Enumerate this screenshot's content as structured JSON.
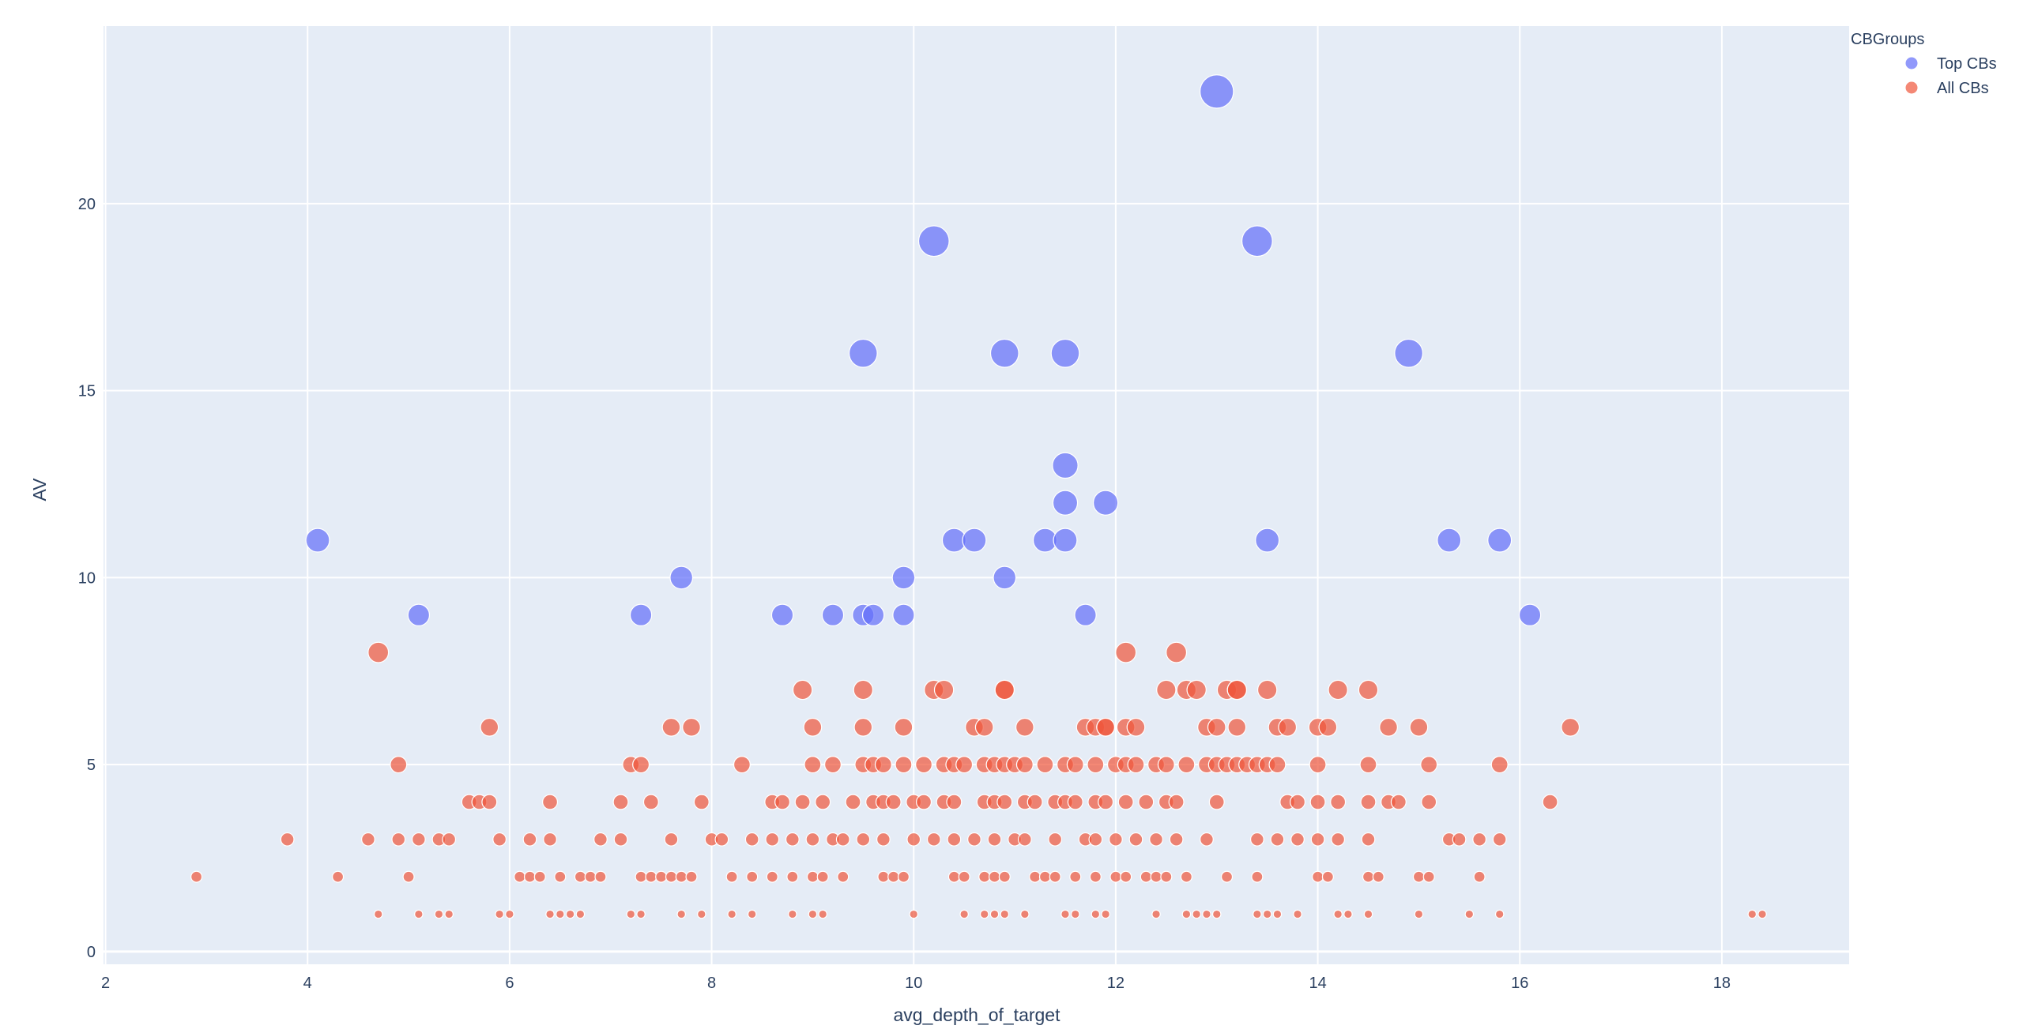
{
  "chart_data": {
    "type": "scatter",
    "title": "",
    "xlabel": "avg_depth_of_target",
    "ylabel": "AV",
    "xlim": [
      1.98,
      19.26
    ],
    "ylim": [
      -0.34,
      24.75
    ],
    "x_ticks": [
      2,
      4,
      6,
      8,
      10,
      12,
      14,
      16,
      18
    ],
    "y_ticks": [
      0,
      5,
      10,
      15,
      20
    ],
    "grid": true,
    "marker_size_encodes": "AV",
    "legend": {
      "title": "CBGroups",
      "placement": "top-right"
    },
    "plot_bgcolor": "#E5ECF6",
    "series": [
      {
        "name": "Top CBs",
        "color": "#636EFA",
        "points": [
          [
            4.1,
            11
          ],
          [
            5.1,
            9
          ],
          [
            7.3,
            9
          ],
          [
            7.7,
            10
          ],
          [
            8.7,
            9
          ],
          [
            9.2,
            9
          ],
          [
            9.5,
            16
          ],
          [
            9.5,
            9
          ],
          [
            9.6,
            9
          ],
          [
            9.9,
            10
          ],
          [
            9.9,
            9
          ],
          [
            10.2,
            19
          ],
          [
            10.4,
            11
          ],
          [
            10.6,
            11
          ],
          [
            10.9,
            16
          ],
          [
            10.9,
            10
          ],
          [
            11.3,
            11
          ],
          [
            11.5,
            16
          ],
          [
            11.5,
            13
          ],
          [
            11.5,
            12
          ],
          [
            11.5,
            11
          ],
          [
            11.7,
            9
          ],
          [
            11.9,
            12
          ],
          [
            13.0,
            23
          ],
          [
            13.4,
            19
          ],
          [
            13.5,
            11
          ],
          [
            14.9,
            16
          ],
          [
            15.3,
            11
          ],
          [
            15.8,
            11
          ],
          [
            16.1,
            9
          ]
        ]
      },
      {
        "name": "All CBs",
        "color": "#EF553B",
        "points": [
          [
            4.7,
            8
          ],
          [
            12.1,
            8
          ],
          [
            12.6,
            8
          ],
          [
            8.9,
            7
          ],
          [
            9.5,
            7
          ],
          [
            10.2,
            7
          ],
          [
            10.3,
            7
          ],
          [
            10.9,
            7
          ],
          [
            10.9,
            7
          ],
          [
            12.5,
            7
          ],
          [
            12.7,
            7
          ],
          [
            12.8,
            7
          ],
          [
            13.1,
            7
          ],
          [
            13.2,
            7
          ],
          [
            13.2,
            7
          ],
          [
            13.5,
            7
          ],
          [
            14.2,
            7
          ],
          [
            14.5,
            7
          ],
          [
            5.8,
            6
          ],
          [
            7.6,
            6
          ],
          [
            7.8,
            6
          ],
          [
            9.0,
            6
          ],
          [
            9.5,
            6
          ],
          [
            9.9,
            6
          ],
          [
            10.6,
            6
          ],
          [
            10.7,
            6
          ],
          [
            11.1,
            6
          ],
          [
            11.7,
            6
          ],
          [
            11.8,
            6
          ],
          [
            11.9,
            6
          ],
          [
            11.9,
            6
          ],
          [
            12.1,
            6
          ],
          [
            12.2,
            6
          ],
          [
            12.9,
            6
          ],
          [
            13.0,
            6
          ],
          [
            13.2,
            6
          ],
          [
            13.6,
            6
          ],
          [
            13.7,
            6
          ],
          [
            14.0,
            6
          ],
          [
            14.1,
            6
          ],
          [
            14.7,
            6
          ],
          [
            15.0,
            6
          ],
          [
            16.5,
            6
          ],
          [
            4.9,
            5
          ],
          [
            7.2,
            5
          ],
          [
            7.3,
            5
          ],
          [
            8.3,
            5
          ],
          [
            9.0,
            5
          ],
          [
            9.2,
            5
          ],
          [
            9.5,
            5
          ],
          [
            9.6,
            5
          ],
          [
            9.7,
            5
          ],
          [
            9.9,
            5
          ],
          [
            10.1,
            5
          ],
          [
            10.3,
            5
          ],
          [
            10.4,
            5
          ],
          [
            10.5,
            5
          ],
          [
            10.7,
            5
          ],
          [
            10.8,
            5
          ],
          [
            10.9,
            5
          ],
          [
            11.0,
            5
          ],
          [
            11.1,
            5
          ],
          [
            11.3,
            5
          ],
          [
            11.5,
            5
          ],
          [
            11.6,
            5
          ],
          [
            11.8,
            5
          ],
          [
            12.0,
            5
          ],
          [
            12.1,
            5
          ],
          [
            12.2,
            5
          ],
          [
            12.4,
            5
          ],
          [
            12.5,
            5
          ],
          [
            12.7,
            5
          ],
          [
            12.9,
            5
          ],
          [
            13.0,
            5
          ],
          [
            13.1,
            5
          ],
          [
            13.2,
            5
          ],
          [
            13.3,
            5
          ],
          [
            13.4,
            5
          ],
          [
            13.5,
            5
          ],
          [
            13.6,
            5
          ],
          [
            14.0,
            5
          ],
          [
            14.5,
            5
          ],
          [
            15.1,
            5
          ],
          [
            15.8,
            5
          ],
          [
            5.6,
            4
          ],
          [
            5.7,
            4
          ],
          [
            5.8,
            4
          ],
          [
            6.4,
            4
          ],
          [
            7.1,
            4
          ],
          [
            7.4,
            4
          ],
          [
            7.9,
            4
          ],
          [
            8.6,
            4
          ],
          [
            8.7,
            4
          ],
          [
            8.9,
            4
          ],
          [
            9.1,
            4
          ],
          [
            9.4,
            4
          ],
          [
            9.6,
            4
          ],
          [
            9.7,
            4
          ],
          [
            9.8,
            4
          ],
          [
            10.0,
            4
          ],
          [
            10.1,
            4
          ],
          [
            10.3,
            4
          ],
          [
            10.4,
            4
          ],
          [
            10.7,
            4
          ],
          [
            10.8,
            4
          ],
          [
            10.9,
            4
          ],
          [
            11.1,
            4
          ],
          [
            11.2,
            4
          ],
          [
            11.4,
            4
          ],
          [
            11.5,
            4
          ],
          [
            11.6,
            4
          ],
          [
            11.8,
            4
          ],
          [
            11.9,
            4
          ],
          [
            12.1,
            4
          ],
          [
            12.3,
            4
          ],
          [
            12.5,
            4
          ],
          [
            12.6,
            4
          ],
          [
            13.0,
            4
          ],
          [
            13.7,
            4
          ],
          [
            13.8,
            4
          ],
          [
            14.0,
            4
          ],
          [
            14.2,
            4
          ],
          [
            14.5,
            4
          ],
          [
            14.7,
            4
          ],
          [
            14.8,
            4
          ],
          [
            15.1,
            4
          ],
          [
            16.3,
            4
          ],
          [
            3.8,
            3
          ],
          [
            4.6,
            3
          ],
          [
            4.9,
            3
          ],
          [
            5.1,
            3
          ],
          [
            5.3,
            3
          ],
          [
            5.4,
            3
          ],
          [
            5.9,
            3
          ],
          [
            6.2,
            3
          ],
          [
            6.4,
            3
          ],
          [
            6.9,
            3
          ],
          [
            7.1,
            3
          ],
          [
            7.6,
            3
          ],
          [
            8.0,
            3
          ],
          [
            8.1,
            3
          ],
          [
            8.4,
            3
          ],
          [
            8.6,
            3
          ],
          [
            8.8,
            3
          ],
          [
            9.0,
            3
          ],
          [
            9.2,
            3
          ],
          [
            9.3,
            3
          ],
          [
            9.5,
            3
          ],
          [
            9.7,
            3
          ],
          [
            10.0,
            3
          ],
          [
            10.2,
            3
          ],
          [
            10.4,
            3
          ],
          [
            10.6,
            3
          ],
          [
            10.8,
            3
          ],
          [
            11.0,
            3
          ],
          [
            11.1,
            3
          ],
          [
            11.4,
            3
          ],
          [
            11.7,
            3
          ],
          [
            11.8,
            3
          ],
          [
            12.0,
            3
          ],
          [
            12.2,
            3
          ],
          [
            12.4,
            3
          ],
          [
            12.6,
            3
          ],
          [
            12.9,
            3
          ],
          [
            13.4,
            3
          ],
          [
            13.6,
            3
          ],
          [
            13.8,
            3
          ],
          [
            14.0,
            3
          ],
          [
            14.2,
            3
          ],
          [
            14.5,
            3
          ],
          [
            15.3,
            3
          ],
          [
            15.4,
            3
          ],
          [
            15.6,
            3
          ],
          [
            15.8,
            3
          ],
          [
            2.9,
            2
          ],
          [
            4.3,
            2
          ],
          [
            5.0,
            2
          ],
          [
            6.1,
            2
          ],
          [
            6.2,
            2
          ],
          [
            6.3,
            2
          ],
          [
            6.5,
            2
          ],
          [
            6.7,
            2
          ],
          [
            6.8,
            2
          ],
          [
            6.9,
            2
          ],
          [
            7.3,
            2
          ],
          [
            7.4,
            2
          ],
          [
            7.5,
            2
          ],
          [
            7.6,
            2
          ],
          [
            7.7,
            2
          ],
          [
            7.8,
            2
          ],
          [
            8.2,
            2
          ],
          [
            8.4,
            2
          ],
          [
            8.6,
            2
          ],
          [
            8.8,
            2
          ],
          [
            9.0,
            2
          ],
          [
            9.1,
            2
          ],
          [
            9.3,
            2
          ],
          [
            9.7,
            2
          ],
          [
            9.8,
            2
          ],
          [
            9.9,
            2
          ],
          [
            10.4,
            2
          ],
          [
            10.5,
            2
          ],
          [
            10.7,
            2
          ],
          [
            10.8,
            2
          ],
          [
            10.9,
            2
          ],
          [
            11.2,
            2
          ],
          [
            11.3,
            2
          ],
          [
            11.4,
            2
          ],
          [
            11.6,
            2
          ],
          [
            11.8,
            2
          ],
          [
            12.0,
            2
          ],
          [
            12.1,
            2
          ],
          [
            12.3,
            2
          ],
          [
            12.4,
            2
          ],
          [
            12.5,
            2
          ],
          [
            12.7,
            2
          ],
          [
            13.1,
            2
          ],
          [
            13.4,
            2
          ],
          [
            14.0,
            2
          ],
          [
            14.1,
            2
          ],
          [
            14.5,
            2
          ],
          [
            14.6,
            2
          ],
          [
            15.0,
            2
          ],
          [
            15.1,
            2
          ],
          [
            15.6,
            2
          ],
          [
            4.7,
            1
          ],
          [
            5.1,
            1
          ],
          [
            5.3,
            1
          ],
          [
            5.4,
            1
          ],
          [
            5.9,
            1
          ],
          [
            6.0,
            1
          ],
          [
            6.4,
            1
          ],
          [
            6.5,
            1
          ],
          [
            6.6,
            1
          ],
          [
            6.7,
            1
          ],
          [
            7.2,
            1
          ],
          [
            7.3,
            1
          ],
          [
            7.7,
            1
          ],
          [
            7.9,
            1
          ],
          [
            8.2,
            1
          ],
          [
            8.4,
            1
          ],
          [
            8.8,
            1
          ],
          [
            9.0,
            1
          ],
          [
            9.1,
            1
          ],
          [
            10.0,
            1
          ],
          [
            10.5,
            1
          ],
          [
            10.7,
            1
          ],
          [
            10.8,
            1
          ],
          [
            10.9,
            1
          ],
          [
            11.1,
            1
          ],
          [
            11.5,
            1
          ],
          [
            11.6,
            1
          ],
          [
            11.8,
            1
          ],
          [
            11.9,
            1
          ],
          [
            12.4,
            1
          ],
          [
            12.7,
            1
          ],
          [
            12.8,
            1
          ],
          [
            12.9,
            1
          ],
          [
            13.0,
            1
          ],
          [
            13.4,
            1
          ],
          [
            13.5,
            1
          ],
          [
            13.6,
            1
          ],
          [
            13.8,
            1
          ],
          [
            14.2,
            1
          ],
          [
            14.3,
            1
          ],
          [
            14.5,
            1
          ],
          [
            15.0,
            1
          ],
          [
            15.5,
            1
          ],
          [
            15.8,
            1
          ],
          [
            18.3,
            1
          ],
          [
            18.4,
            1
          ]
        ]
      }
    ]
  }
}
